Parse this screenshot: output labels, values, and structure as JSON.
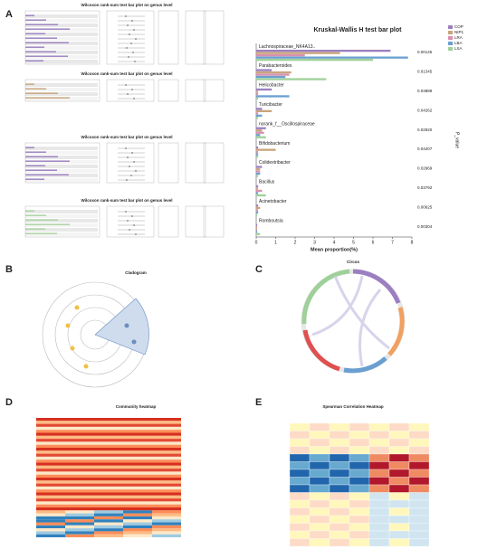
{
  "panel_letters": [
    "A",
    "B",
    "C",
    "D",
    "E"
  ],
  "wilcoxon_titles": [
    "Wilcoxon rank-sum test bar plot on genus level",
    "Wilcoxon rank-sum test bar plot on genus level",
    "Wilcoxon rank-sum test bar plot on genus level",
    "Wilcoxon rank-sum test bar plot on genus level"
  ],
  "cladogram_title": "Cladogram",
  "circos_title": "Circos",
  "community_title": "Community heatmap",
  "spearman_title": "Spearman Correlation Heatmap",
  "chart_data": {
    "type": "hbar",
    "title": "Kruskal-Wallis H test bar plot",
    "x_label": "Mean proportion(%)",
    "y2_label": "P_value",
    "categories": [
      "Lachnospiraceae_NK4A13..",
      "Parabacteroides",
      "Helicobacter",
      "Turicibacter",
      "norank_f__Oscillospiraceae",
      "Bifidobacterium",
      "Colidextribacter",
      "Bacillus",
      "Acinetobacter",
      "Romboutsia"
    ],
    "p_values": [
      "0.00145",
      "0.01345",
      "0.03889",
      "0.04262",
      "0.02920",
      "0.04207",
      "0.02969",
      "0.03792",
      "0.00625",
      "0.00304"
    ],
    "series": [
      {
        "name": "COP",
        "color": "#9b7fc0",
        "values": [
          6.9,
          0.8,
          0.8,
          0.3,
          0.5,
          0.1,
          0.3,
          0.1,
          0.1,
          0.05
        ]
      },
      {
        "name": "NIP1",
        "color": "#c9a47c",
        "values": [
          4.3,
          1.8,
          0.1,
          0.8,
          0.3,
          1.0,
          0.2,
          0.1,
          0.2,
          0.05
        ]
      },
      {
        "name": "LRA",
        "color": "#d98fb0",
        "values": [
          2.5,
          1.7,
          0.1,
          0.1,
          0.4,
          0.1,
          0.2,
          0.3,
          0.1,
          0.05
        ]
      },
      {
        "name": "LBA",
        "color": "#6a9fd0",
        "values": [
          7.8,
          1.5,
          1.7,
          0.3,
          0.2,
          0.1,
          0.2,
          0.1,
          0.1,
          0.05
        ]
      },
      {
        "name": "LSA",
        "color": "#9fd09a",
        "values": [
          6.0,
          3.6,
          0.1,
          0.1,
          0.5,
          0.1,
          0.1,
          0.5,
          0.05,
          0.2
        ]
      }
    ],
    "xlim": [
      0,
      8
    ],
    "xticks": [
      0,
      1,
      2,
      3,
      4,
      5,
      6,
      7,
      8
    ],
    "legend": "top-right"
  }
}
